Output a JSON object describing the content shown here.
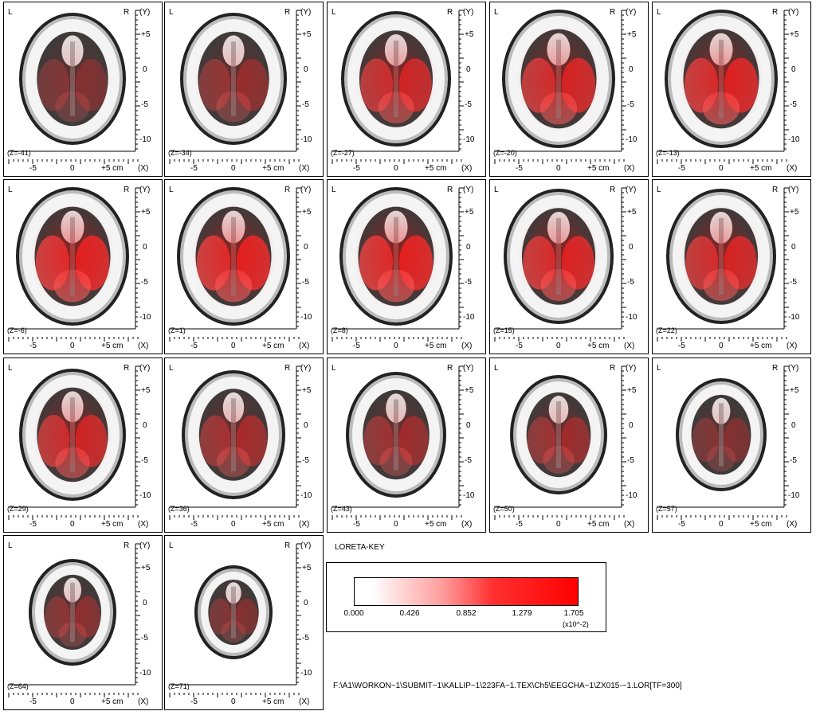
{
  "orientation": {
    "left": "L",
    "right": "R",
    "y_axis": "(Y)",
    "x_axis": "(X)"
  },
  "y_ticks": [
    "+5",
    "0",
    "-5",
    "-10"
  ],
  "x_ticks": [
    "-5",
    "0",
    "+5 cm"
  ],
  "slices": [
    {
      "z_label": "(Z=-41)"
    },
    {
      "z_label": "(Z=-34)"
    },
    {
      "z_label": "(Z=-27)"
    },
    {
      "z_label": "(Z=-20)"
    },
    {
      "z_label": "(Z=-13)"
    },
    {
      "z_label": "(Z=-6)"
    },
    {
      "z_label": "(Z=1)"
    },
    {
      "z_label": "(Z=8)"
    },
    {
      "z_label": "(Z=15)"
    },
    {
      "z_label": "(Z=22)"
    },
    {
      "z_label": "(Z=29)"
    },
    {
      "z_label": "(Z=36)"
    },
    {
      "z_label": "(Z=43)"
    },
    {
      "z_label": "(Z=50)"
    },
    {
      "z_label": "(Z=57)"
    },
    {
      "z_label": "(Z=64)"
    },
    {
      "z_label": "(Z=71)"
    }
  ],
  "key": {
    "title": "LORETA-KEY",
    "ticks": [
      "0.000",
      "0.426",
      "0.852",
      "1.279",
      "1.705"
    ],
    "unit": "(x10^-2)",
    "colors": {
      "low": "#ffffff",
      "high": "#ff0000"
    }
  },
  "file_path": "F:\\A1\\WORKON~1\\SUBMIT~1\\KALLIP~1\\223FA~1.TEX\\Ch5\\EEGCHA~1\\ZX015-~1.LOR[TF=300]"
}
